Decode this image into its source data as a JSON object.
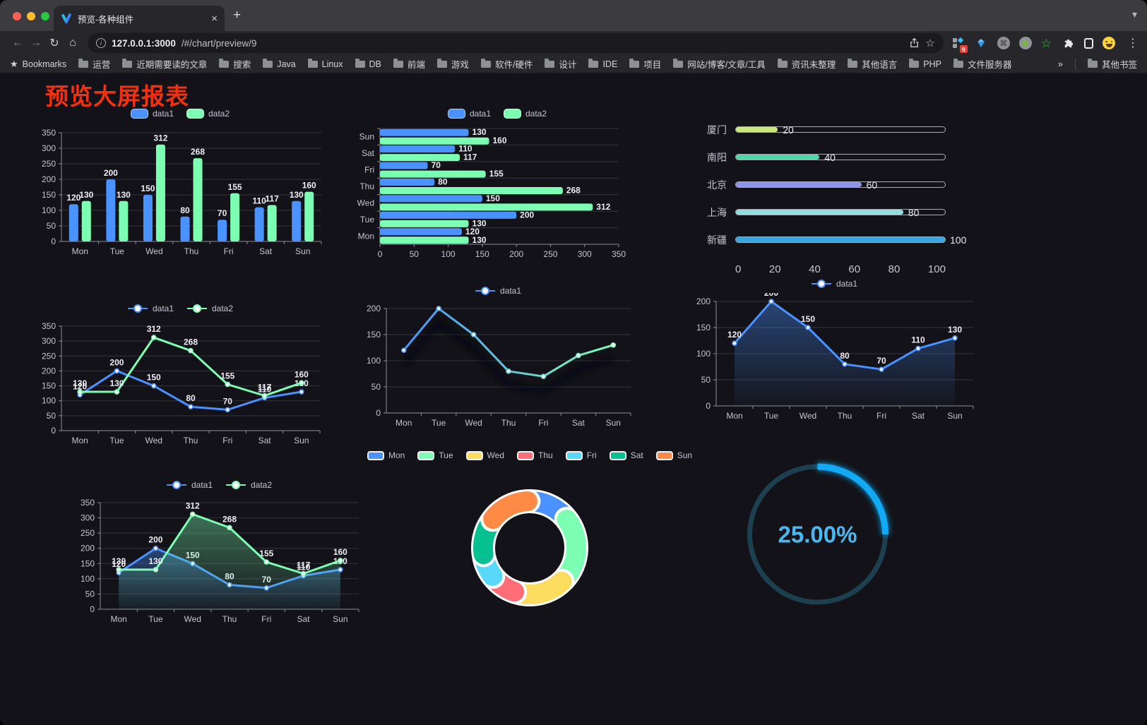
{
  "browser": {
    "tab_title": "预览-各种组件",
    "url_host": "127.0.0.1:3000",
    "url_path": "/#/chart/preview/9",
    "extension_badge": "9",
    "bookmarks_label": "Bookmarks",
    "bookmarks": [
      "运营",
      "近期需要读的文章",
      "搜索",
      "Java",
      "Linux",
      "DB",
      "前端",
      "游戏",
      "软件/硬件",
      "设计",
      "IDE",
      "项目",
      "网站/博客/文章/工具",
      "资讯未整理",
      "其他语言",
      "PHP",
      "文件服务器"
    ],
    "bookmarks_overflow": "»",
    "other_bookmarks": "其他书签"
  },
  "icons": {
    "back": "←",
    "forward": "→",
    "reload": "↻",
    "home": "⌂",
    "menu": "⋮",
    "chevron": "▾",
    "close": "×",
    "new_tab": "+",
    "star_outline": "☆",
    "bookmarks_star": "★",
    "cmd": "⌘",
    "info": "i"
  },
  "page": {
    "title": "预览大屏报表",
    "title_color": "#f4300f"
  },
  "theme": {
    "grid": "#34333d",
    "axis": "#8f8e9c",
    "axis_label": "#c4c3d1",
    "value_label": "#ededf3",
    "series_blue": "#4992ff",
    "series_green": "#7cffb2"
  },
  "chart_data": [
    {
      "name": "bar-chart",
      "type": "barV",
      "categories": [
        "Mon",
        "Tue",
        "Wed",
        "Thu",
        "Fri",
        "Sat",
        "Sun"
      ],
      "series": [
        {
          "name": "data1",
          "color": "#4992ff",
          "values": [
            120,
            200,
            150,
            80,
            70,
            110,
            130
          ]
        },
        {
          "name": "data2",
          "color": "#7cffb2",
          "values": [
            130,
            130,
            312,
            268,
            155,
            117,
            160
          ]
        }
      ],
      "ymax": 350,
      "ystep": 50
    },
    {
      "name": "horizontal-bar-chart",
      "type": "barH",
      "categories": [
        "Mon",
        "Tue",
        "Wed",
        "Thu",
        "Fri",
        "Sat",
        "Sun"
      ],
      "series": [
        {
          "name": "data1",
          "color": "#4992ff",
          "values": [
            120,
            200,
            150,
            80,
            70,
            110,
            130
          ]
        },
        {
          "name": "data2",
          "color": "#7cffb2",
          "values": [
            130,
            130,
            312,
            268,
            155,
            117,
            160
          ]
        }
      ],
      "xmax": 350,
      "xstep": 50
    },
    {
      "name": "city-progress-chart",
      "type": "progress",
      "max": 100,
      "ticks": [
        0,
        20,
        40,
        60,
        80,
        100
      ],
      "items": [
        {
          "label": "厦门",
          "value": 20,
          "color": "#c9e67f"
        },
        {
          "label": "南阳",
          "value": 40,
          "color": "#4fd6a8"
        },
        {
          "label": "北京",
          "value": 60,
          "color": "#8d93e6"
        },
        {
          "label": "上海",
          "value": 80,
          "color": "#8ce0e2"
        },
        {
          "label": "新疆",
          "value": 100,
          "color": "#38a7e0"
        }
      ]
    },
    {
      "name": "line-chart",
      "type": "line",
      "categories": [
        "Mon",
        "Tue",
        "Wed",
        "Thu",
        "Fri",
        "Sat",
        "Sun"
      ],
      "series": [
        {
          "name": "data1",
          "color": "#4992ff",
          "values": [
            120,
            200,
            150,
            80,
            70,
            110,
            130
          ]
        },
        {
          "name": "data2",
          "color": "#7cffb2",
          "values": [
            130,
            130,
            312,
            268,
            155,
            117,
            160
          ]
        }
      ],
      "ymax": 350,
      "ystep": 50,
      "labels": true
    },
    {
      "name": "gradient-line-chart",
      "type": "line",
      "categories": [
        "Mon",
        "Tue",
        "Wed",
        "Thu",
        "Fri",
        "Sat",
        "Sun"
      ],
      "series": [
        {
          "name": "data1",
          "color": "#4992ff",
          "gradient": [
            "#4992ff",
            "#7cffb2"
          ],
          "shadow": true,
          "values": [
            120,
            200,
            150,
            80,
            70,
            110,
            130
          ]
        }
      ],
      "ymax": 200,
      "ystep": 50,
      "labels": false
    },
    {
      "name": "area-line-chart",
      "type": "line",
      "categories": [
        "Mon",
        "Tue",
        "Wed",
        "Thu",
        "Fri",
        "Sat",
        "Sun"
      ],
      "series": [
        {
          "name": "data1",
          "color": "#4992ff",
          "area": true,
          "values": [
            120,
            200,
            150,
            80,
            70,
            110,
            130
          ]
        }
      ],
      "ymax": 200,
      "ystep": 50,
      "labels": true
    },
    {
      "name": "double-area-line-chart",
      "type": "line",
      "categories": [
        "Mon",
        "Tue",
        "Wed",
        "Thu",
        "Fri",
        "Sat",
        "Sun"
      ],
      "series": [
        {
          "name": "data1",
          "color": "#4992ff",
          "area": true,
          "values": [
            120,
            200,
            150,
            80,
            70,
            110,
            130
          ]
        },
        {
          "name": "data2",
          "color": "#7cffb2",
          "area": true,
          "values": [
            130,
            130,
            312,
            268,
            155,
            117,
            160
          ]
        }
      ],
      "ymax": 350,
      "ystep": 50,
      "labels": true
    },
    {
      "name": "donut-chart",
      "type": "pie",
      "categories": [
        "Mon",
        "Tue",
        "Wed",
        "Thu",
        "Fri",
        "Sat",
        "Sun"
      ],
      "values": [
        120,
        200,
        150,
        80,
        70,
        110,
        130
      ],
      "colors": [
        "#4992ff",
        "#7cffb2",
        "#fddd60",
        "#ff6e76",
        "#58d9f9",
        "#05c091",
        "#ff8a45"
      ]
    },
    {
      "name": "gauge-chart",
      "type": "gauge",
      "value": 25,
      "label": "25.00%",
      "color": "#12aaf5",
      "track": "#1d4050",
      "text_color": "#4ab8f0"
    }
  ]
}
